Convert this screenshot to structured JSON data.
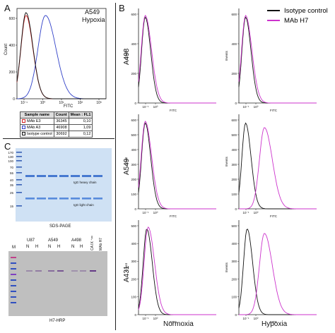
{
  "panels": {
    "A": {
      "letter": "A",
      "title_line1": "A549",
      "title_line2": "Hypoxia",
      "ylabel": "Count",
      "xlabel": "FITC",
      "yticks": [
        "600",
        "400",
        "200",
        "0"
      ],
      "xticks": [
        "10⁻¹",
        "10⁰",
        "10¹",
        "10²",
        "10³"
      ]
    },
    "B": {
      "letter": "B"
    },
    "C": {
      "letter": "C"
    }
  },
  "stats_table": {
    "headers": [
      "Sample name",
      "Count",
      "Mean : FL1"
    ],
    "rows": [
      {
        "name": "MAb E3",
        "count": "36345",
        "mean": "0,10",
        "color": "#d42020"
      },
      {
        "name": "MAb A3",
        "count": "46908",
        "mean": "1,09",
        "color": "#3040c8"
      },
      {
        "name": "Isotype control",
        "count": "30692",
        "mean": "0,12",
        "color": "#111111"
      }
    ]
  },
  "legend": {
    "isotype": "Isotype control",
    "mab": "MAb H7",
    "isotype_color": "#111111",
    "mab_color": "#cc33cc"
  },
  "grid": {
    "rows": [
      "A498",
      "A549",
      "A431"
    ],
    "columns": [
      "Normoxia",
      "Hypoxia"
    ],
    "ylabel_left": "Count",
    "ylabel_right": "Events",
    "xlabel": "FITC",
    "yticks_a498": [
      "600",
      "400",
      "200",
      "0"
    ],
    "yticks_a549": [
      "600",
      "500",
      "400",
      "300",
      "200",
      "100",
      "0"
    ],
    "yticks_a431": [
      "500",
      "400",
      "300",
      "200",
      "100",
      "0"
    ],
    "xtick_main": "10⁻¹",
    "xtick_second": "10⁰"
  },
  "gel": {
    "markers": [
      "170",
      "130",
      "100",
      "70",
      "55",
      "40",
      "35",
      "25",
      "15"
    ],
    "heavy_label": "IgG heavy chain",
    "light_label": "IgG light chain",
    "caption": "SDS-PAGE"
  },
  "blot": {
    "lane_groups": [
      "U87",
      "A549",
      "A498"
    ],
    "lanes": [
      "N",
      "H",
      "N",
      "H",
      "N",
      "H"
    ],
    "M": "M",
    "rot_label1": "CA IX ⁺ᵠᵉ",
    "rot_label2": "MAb H7",
    "caption": "H7-HRP"
  },
  "chart_data": [
    {
      "type": "line",
      "panel": "A",
      "title": "A549 Hypoxia",
      "xlabel": "FITC",
      "ylabel": "Count",
      "xscale": "log",
      "ylim": [
        0,
        650
      ],
      "series": [
        {
          "name": "MAb E3",
          "mode": 0.08,
          "peak": 600
        },
        {
          "name": "MAb A3",
          "mode": 1.0,
          "peak": 600
        },
        {
          "name": "Isotype control",
          "mode": 0.08,
          "peak": 620
        }
      ]
    },
    {
      "type": "line",
      "panel": "B",
      "rows": [
        "A498",
        "A549",
        "A431"
      ],
      "columns": [
        "Normoxia",
        "Hypoxia"
      ],
      "xlabel": "FITC",
      "xscale": "log",
      "series": [
        {
          "name": "Isotype control",
          "modes": [
            [
              0.08,
              0.08
            ],
            [
              0.08,
              0.08
            ],
            [
              0.1,
              0.1
            ]
          ]
        },
        {
          "name": "MAb H7",
          "modes": [
            [
              0.08,
              0.08
            ],
            [
              0.08,
              1.1
            ],
            [
              0.12,
              1.1
            ]
          ]
        }
      ]
    }
  ]
}
